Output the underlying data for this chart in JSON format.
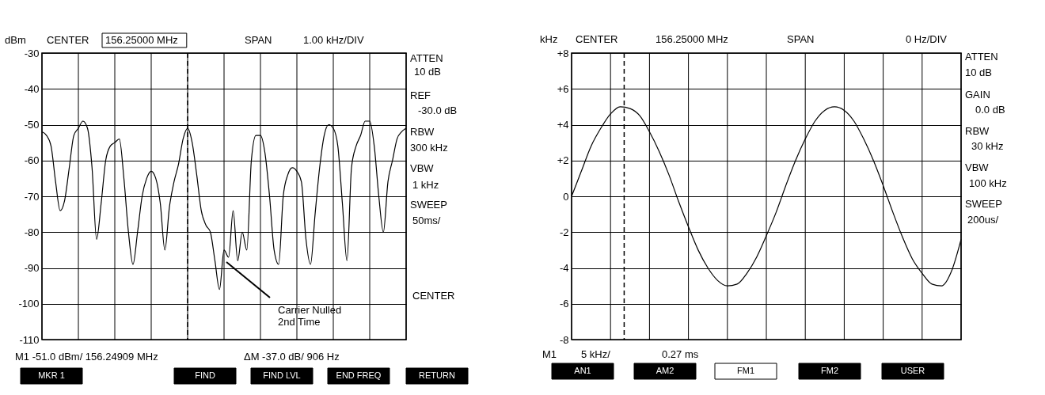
{
  "chart_data": [
    {
      "type": "line",
      "ylabel": "dBm",
      "categories": [
        null,
        null,
        null,
        null,
        null,
        null,
        null,
        null,
        null,
        null,
        null,
        null,
        null,
        null,
        null,
        null,
        null,
        null,
        null,
        null,
        null,
        null,
        null,
        null,
        null,
        null,
        null,
        null,
        null,
        null,
        null,
        null,
        null,
        null,
        null,
        null,
        null,
        null,
        null,
        null,
        null,
        null,
        null,
        null,
        null,
        null,
        null,
        null,
        null,
        null,
        null,
        null,
        null,
        null,
        null,
        null,
        null,
        null,
        null,
        null,
        null,
        null,
        null,
        null,
        null,
        null,
        null,
        null,
        null,
        null,
        null,
        null,
        null,
        null,
        null,
        null,
        null,
        null,
        null,
        null,
        null
      ],
      "series": [
        {
          "color": "#000000",
          "values": [
            -52,
            -53,
            -56,
            -66,
            -74,
            -71,
            -62,
            -53,
            -51,
            -49,
            -51,
            -62,
            -82,
            -72,
            -60,
            -56,
            -55,
            -54,
            -65,
            -80,
            -89,
            -80,
            -70,
            -65,
            -63,
            -65,
            -72,
            -85,
            -73,
            -66,
            -61,
            -54,
            -51,
            -55,
            -64,
            -74,
            -78,
            -80,
            -88,
            -96,
            -85,
            -87,
            -74,
            -88,
            -80,
            -85,
            -60,
            -53,
            -53,
            -58,
            -70,
            -85,
            -89,
            -70,
            -64,
            -62,
            -63,
            -66,
            -82,
            -89,
            -75,
            -62,
            -53,
            -50,
            -51,
            -56,
            -72,
            -88,
            -62,
            -56,
            -53,
            -49,
            -49,
            -56,
            -70,
            -80,
            -66,
            -60,
            -54,
            -52,
            -51
          ]
        }
      ],
      "ylim": [
        -110,
        -30
      ],
      "yticks": [
        -110,
        -100,
        -90,
        -80,
        -70,
        -60,
        -50,
        -40,
        -30
      ],
      "grid": true,
      "tick_labels": "y",
      "annotations": [
        "CENTER",
        "156.25000 MHz",
        "SPAN",
        "1.00 kHz/DIV",
        "ATTEN",
        "10 dB",
        "REF",
        "-30.0 dB",
        "RBW",
        "300 kHz",
        "VBW",
        "1 kHz",
        "SWEEP",
        "50ms/",
        "CENTER",
        "M1 -51.0 dBm/ 156.24909 MHz",
        "ΔM -37.0 dB/ 906 Hz",
        "MKR 1",
        "FIND",
        "FIND LVL",
        "END FREQ",
        "RETURN",
        "Carrier Nulled\n2nd Time"
      ]
    },
    {
      "type": "line",
      "ylabel": "kHz",
      "categories": [
        null,
        null,
        null,
        null,
        null,
        null,
        null,
        null,
        null,
        null,
        null,
        null,
        null,
        null,
        null,
        null,
        null,
        null,
        null,
        null,
        null,
        null,
        null,
        null,
        null,
        null,
        null,
        null,
        null,
        null,
        null,
        null,
        null,
        null,
        null,
        null,
        null,
        null,
        null,
        null,
        null
      ],
      "series": [
        {
          "color": "#000000",
          "values": [
            0,
            1.4,
            2.8,
            3.8,
            4.6,
            5.0,
            4.9,
            4.5,
            3.6,
            2.5,
            1.2,
            -0.3,
            -1.7,
            -3.0,
            -4.0,
            -4.7,
            -5.0,
            -4.9,
            -4.3,
            -3.4,
            -2.2,
            -0.9,
            0.6,
            2.0,
            3.2,
            4.2,
            4.8,
            5.0,
            4.8,
            4.2,
            3.2,
            2.0,
            0.6,
            -0.9,
            -2.3,
            -3.5,
            -4.3,
            -4.9,
            -5.0,
            -4.2,
            -2.4
          ]
        }
      ],
      "ylim": [
        -8,
        8
      ],
      "yticks": [
        {
          "value": -8,
          "label": "-8"
        },
        {
          "value": -6,
          "label": "-6"
        },
        {
          "value": -4,
          "label": "-4"
        },
        {
          "value": -2,
          "label": "-2"
        },
        {
          "value": 0,
          "label": "0"
        },
        {
          "value": 2,
          "label": "+2"
        },
        {
          "value": 4,
          "label": "+4"
        },
        {
          "value": 6,
          "label": "+6"
        },
        {
          "value": 8,
          "label": "+8"
        }
      ],
      "grid": true,
      "tick_labels": "y",
      "annotations": [
        "CENTER",
        "156.25000 MHz",
        "SPAN",
        "0 Hz/DIV",
        "ATTEN",
        "10 dB",
        "GAIN",
        "0.0 dB",
        "RBW",
        "30 kHz",
        "VBW",
        "100 kHz",
        "SWEEP",
        "200us/",
        "M1",
        "5 kHz/",
        "0.27 ms",
        "AN1",
        "AM2",
        "FM1",
        "FM2",
        "USER"
      ]
    }
  ]
}
